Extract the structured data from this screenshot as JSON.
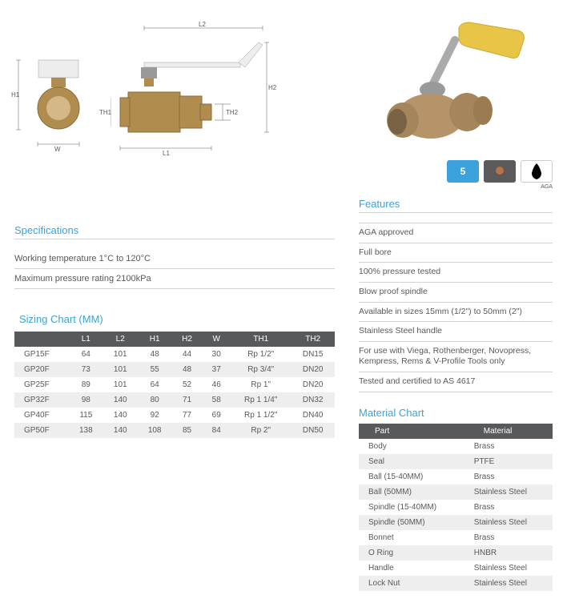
{
  "diagrams": {
    "labels": {
      "H1": "H1",
      "W": "W",
      "TH1": "TH1",
      "L1": "L1",
      "L2": "L2",
      "H2": "H2",
      "TH2": "TH2"
    },
    "body_color": "#b08d4f",
    "handle_color": "#f4d03f",
    "line_color": "#58595b"
  },
  "photo": {
    "body_color": "#b5946a",
    "handle_color": "#e8c547"
  },
  "badges": {
    "warranty": "5 YEAR WARRANTY",
    "copper": "COPPER PRESS",
    "aga": "AGA"
  },
  "specifications": {
    "title": "Specifications",
    "lines": [
      "Working temperature 1°C to 120°C",
      "Maximum pressure rating 2100kPa"
    ]
  },
  "sizing": {
    "title": "Sizing Chart (MM)",
    "columns": [
      "",
      "L1",
      "L2",
      "H1",
      "H2",
      "W",
      "TH1",
      "TH2"
    ],
    "rows": [
      [
        "GP15F",
        "64",
        "101",
        "48",
        "44",
        "30",
        "Rp 1/2\"",
        "DN15"
      ],
      [
        "GP20F",
        "73",
        "101",
        "55",
        "48",
        "37",
        "Rp 3/4\"",
        "DN20"
      ],
      [
        "GP25F",
        "89",
        "101",
        "64",
        "52",
        "46",
        "Rp 1\"",
        "DN20"
      ],
      [
        "GP32F",
        "98",
        "140",
        "80",
        "71",
        "58",
        "Rp 1 1/4\"",
        "DN32"
      ],
      [
        "GP40F",
        "115",
        "140",
        "92",
        "77",
        "69",
        "Rp 1 1/2\"",
        "DN40"
      ],
      [
        "GP50F",
        "138",
        "140",
        "108",
        "85",
        "84",
        "Rp 2\"",
        "DN50"
      ]
    ]
  },
  "features": {
    "title": "Features",
    "lines": [
      "AGA approved",
      "Full bore",
      "100% pressure tested",
      "Blow proof spindle",
      "Available in sizes 15mm (1/2\") to 50mm (2\")",
      "Stainless Steel handle",
      "For use with Viega, Rothenberger, Novopress, Kempress, Rems & V-Profile Tools only",
      "Tested and certified to AS 4617"
    ]
  },
  "material": {
    "title": "Material Chart",
    "columns": [
      "Part",
      "Material"
    ],
    "rows": [
      [
        "Body",
        "Brass"
      ],
      [
        "Seal",
        "PTFE"
      ],
      [
        "Ball (15-40MM)",
        "Brass"
      ],
      [
        "Ball (50MM)",
        "Stainless Steel"
      ],
      [
        "Spindle (15-40MM)",
        "Brass"
      ],
      [
        "Spindle (50MM)",
        "Stainless Steel"
      ],
      [
        "Bonnet",
        "Brass"
      ],
      [
        "O Ring",
        "HNBR"
      ],
      [
        "Handle",
        "Stainless Steel"
      ],
      [
        "Lock Nut",
        "Stainless Steel"
      ]
    ]
  }
}
